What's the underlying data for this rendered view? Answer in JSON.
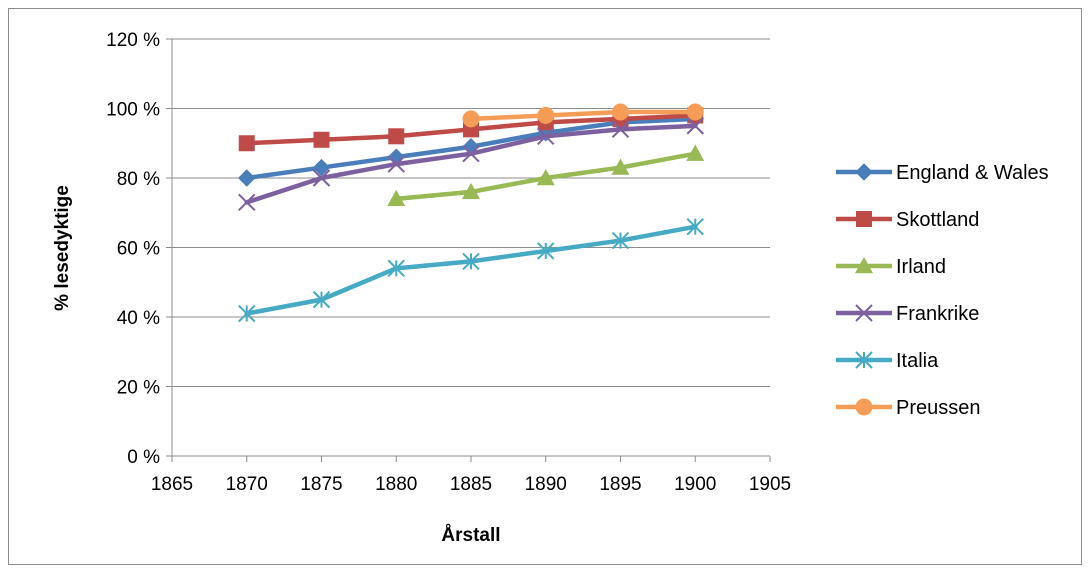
{
  "chart_data": {
    "type": "line",
    "title": "",
    "xlabel": "Årstall",
    "ylabel": "% lesedyktige",
    "xlim": [
      1865,
      1905
    ],
    "ylim": [
      0,
      120
    ],
    "x_ticks": [
      1865,
      1870,
      1875,
      1880,
      1885,
      1890,
      1895,
      1900,
      1905
    ],
    "x_tick_labels": [
      "1865",
      "1870",
      "1875",
      "1880",
      "1885",
      "1890",
      "1895",
      "1900",
      "1905"
    ],
    "y_ticks": [
      0,
      20,
      40,
      60,
      80,
      100,
      120
    ],
    "y_tick_labels": [
      "0 %",
      "20 %",
      "40 %",
      "60 %",
      "80 %",
      "100 %",
      "120 %"
    ],
    "grid": "horizontal",
    "legend_position": "right",
    "series": [
      {
        "name": "England & Wales",
        "color": "#4a7ebb",
        "marker": "diamond",
        "x": [
          1870,
          1875,
          1880,
          1885,
          1890,
          1895,
          1900
        ],
        "y": [
          80,
          83,
          86,
          89,
          93,
          96,
          97
        ]
      },
      {
        "name": "Skottland",
        "color": "#be4b48",
        "marker": "square",
        "x": [
          1870,
          1875,
          1880,
          1885,
          1890,
          1895,
          1900
        ],
        "y": [
          90,
          91,
          92,
          94,
          96,
          97,
          98
        ]
      },
      {
        "name": "Irland",
        "color": "#98b954",
        "marker": "triangle",
        "x": [
          1880,
          1885,
          1890,
          1895,
          1900
        ],
        "y": [
          74,
          76,
          80,
          83,
          87
        ]
      },
      {
        "name": "Frankrike",
        "color": "#7d60a0",
        "marker": "x",
        "x": [
          1870,
          1875,
          1880,
          1885,
          1890,
          1895,
          1900
        ],
        "y": [
          73,
          80,
          84,
          87,
          92,
          94,
          95
        ]
      },
      {
        "name": "Italia",
        "color": "#46aac5",
        "marker": "star",
        "x": [
          1870,
          1875,
          1880,
          1885,
          1890,
          1895,
          1900
        ],
        "y": [
          41,
          45,
          54,
          56,
          59,
          62,
          66
        ]
      },
      {
        "name": "Preussen",
        "color": "#f59d56",
        "marker": "circle",
        "x": [
          1885,
          1890,
          1895,
          1900
        ],
        "y": [
          97,
          98,
          99,
          99
        ]
      }
    ]
  }
}
